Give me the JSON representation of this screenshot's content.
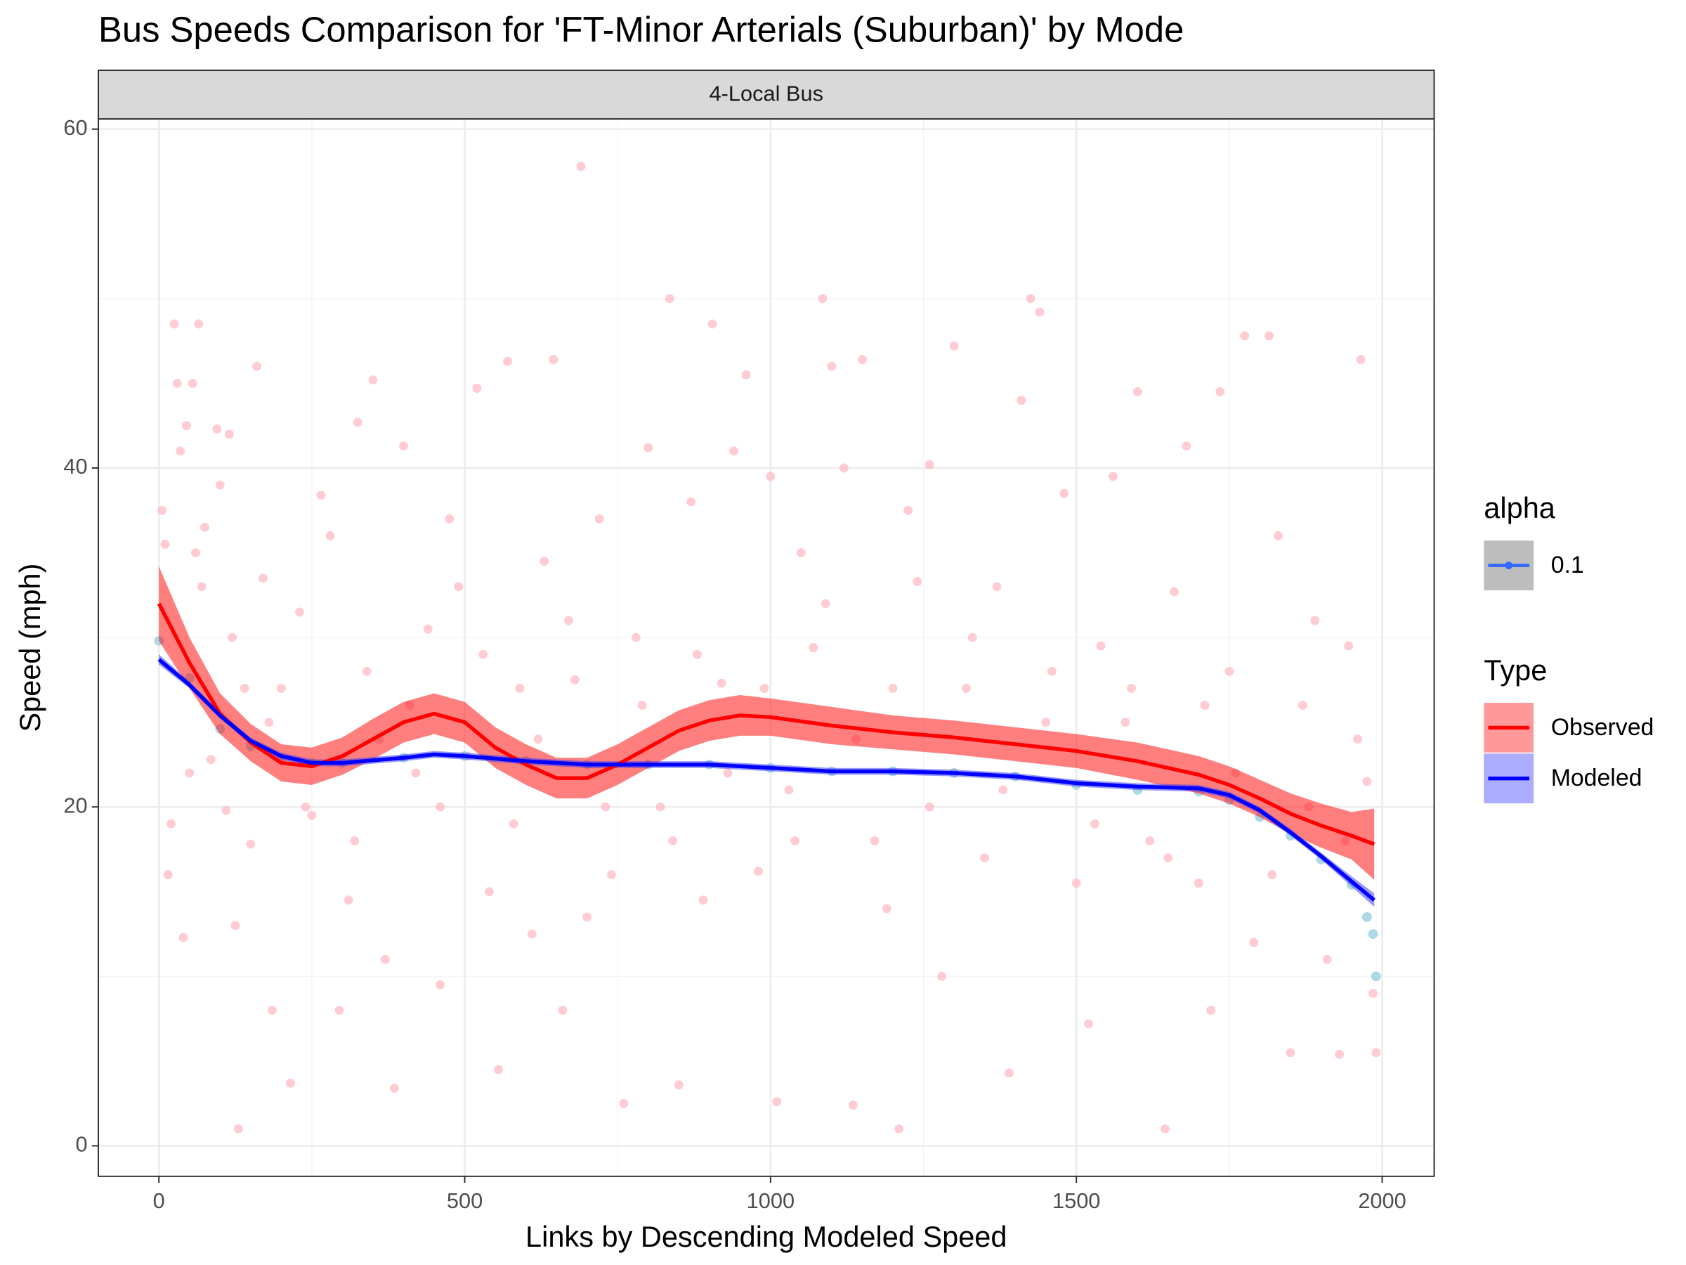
{
  "chart_data": {
    "type": "scatter",
    "title": "Bus Speeds Comparison for 'FT-Minor Arterials (Suburban)' by Mode",
    "facet_label": "4-Local Bus",
    "x_label": "Links by Descending Modeled Speed",
    "y_label": "Speed (mph)",
    "xlim": [
      -99,
      2085
    ],
    "ylim": [
      -1.8,
      60.6
    ],
    "xticks": [
      0,
      500,
      1000,
      1500,
      2000
    ],
    "yticks": [
      0,
      20,
      40,
      60
    ],
    "minor_xticks": [
      250,
      750,
      1250,
      1750
    ],
    "minor_yticks": [
      10,
      30,
      50
    ],
    "grid": true,
    "alpha_legend": {
      "title": "alpha",
      "label": "0.1",
      "color": "#3366ff"
    },
    "legend_title": "Type",
    "observed_points": {
      "color": "#ffb6c1",
      "x": [
        5,
        10,
        15,
        20,
        25,
        30,
        35,
        40,
        45,
        50,
        55,
        60,
        65,
        70,
        75,
        85,
        95,
        100,
        110,
        115,
        125,
        130,
        140,
        150,
        160,
        170,
        185,
        200,
        215,
        230,
        250,
        265,
        280,
        295,
        310,
        325,
        340,
        350,
        370,
        385,
        400,
        420,
        440,
        460,
        475,
        490,
        505,
        520,
        540,
        555,
        570,
        590,
        610,
        630,
        645,
        660,
        680,
        690,
        700,
        720,
        740,
        760,
        780,
        800,
        820,
        835,
        850,
        870,
        890,
        905,
        920,
        940,
        960,
        980,
        1000,
        1010,
        1030,
        1050,
        1070,
        1085,
        1100,
        1120,
        1135,
        1150,
        1170,
        1190,
        1210,
        1225,
        1240,
        1260,
        1280,
        1300,
        1320,
        1350,
        1370,
        1390,
        1410,
        1425,
        1440,
        1460,
        1480,
        1500,
        1520,
        1540,
        1560,
        1580,
        1600,
        1620,
        1645,
        1660,
        1680,
        1700,
        1720,
        1735,
        1750,
        1775,
        1790,
        1815,
        1830,
        1850,
        1870,
        1890,
        1910,
        1930,
        1945,
        1965,
        1975,
        1985,
        1990,
        120,
        180,
        240,
        320,
        360,
        410,
        460,
        530,
        580,
        620,
        670,
        730,
        790,
        840,
        880,
        930,
        990,
        1040,
        1090,
        1140,
        1200,
        1260,
        1330,
        1380,
        1450,
        1530,
        1590,
        1650,
        1710,
        1760,
        1820,
        1880,
        1940,
        1960
      ],
      "y": [
        37.5,
        35.5,
        16,
        19,
        48.5,
        45,
        41,
        12.3,
        42.5,
        22,
        45,
        35,
        48.5,
        33,
        36.5,
        22.8,
        42.3,
        39,
        19.8,
        42,
        13,
        1,
        27,
        17.8,
        46,
        33.5,
        8,
        27,
        3.7,
        31.5,
        19.5,
        38.4,
        36,
        8,
        14.5,
        42.7,
        28,
        45.2,
        11,
        3.4,
        41.3,
        22,
        30.5,
        9.5,
        37,
        33,
        23,
        44.7,
        15,
        4.5,
        46.3,
        27,
        12.5,
        34.5,
        46.4,
        8,
        27.5,
        57.8,
        13.5,
        37,
        16,
        2.5,
        30,
        41.2,
        20,
        50,
        3.6,
        38,
        14.5,
        48.5,
        27.3,
        41,
        45.5,
        16.2,
        39.5,
        2.6,
        21,
        35,
        29.4,
        50,
        46,
        40,
        2.4,
        46.4,
        18,
        14,
        1,
        37.5,
        33.3,
        40.2,
        10,
        47.2,
        27,
        17,
        33,
        4.3,
        44,
        50,
        49.2,
        28,
        38.5,
        15.5,
        7.2,
        29.5,
        39.5,
        25,
        44.5,
        18,
        1,
        32.7,
        41.3,
        15.5,
        8,
        44.5,
        28,
        47.8,
        12,
        47.8,
        36,
        5.5,
        26,
        31,
        11,
        5.4,
        29.5,
        46.4,
        21.5,
        9,
        5.5,
        30,
        25,
        20,
        18,
        24,
        26,
        20,
        29,
        19,
        24,
        31,
        20,
        26,
        18,
        29,
        22,
        27,
        18,
        32,
        24,
        27,
        20,
        30,
        21,
        25,
        19,
        27,
        17,
        26,
        22,
        16,
        20,
        18,
        24
      ]
    },
    "modeled_points": {
      "color": "#add8e6",
      "x": [
        0,
        50,
        100,
        150,
        200,
        250,
        300,
        400,
        500,
        600,
        700,
        800,
        900,
        1000,
        1100,
        1200,
        1300,
        1400,
        1500,
        1600,
        1700,
        1750,
        1800,
        1850,
        1900,
        1950,
        1975,
        1985,
        1990
      ],
      "y": [
        29.8,
        27.6,
        24.6,
        23.6,
        22.9,
        22.6,
        22.6,
        22.9,
        23,
        22.7,
        22.5,
        22.5,
        22.5,
        22.3,
        22.1,
        22.1,
        22,
        21.8,
        21.3,
        21,
        20.9,
        20.4,
        19.4,
        18.3,
        16.9,
        15.4,
        13.5,
        12.5,
        10
      ]
    },
    "series": [
      {
        "name": "Observed",
        "color": "#ff0000",
        "band_color": "#ff0000",
        "x": [
          0,
          50,
          100,
          150,
          200,
          250,
          300,
          350,
          400,
          450,
          500,
          550,
          600,
          650,
          700,
          750,
          800,
          850,
          900,
          950,
          1000,
          1100,
          1200,
          1300,
          1400,
          1500,
          1600,
          1700,
          1750,
          1800,
          1850,
          1900,
          1950,
          1987
        ],
        "values": [
          32,
          28.5,
          25.5,
          23.8,
          22.6,
          22.4,
          23,
          24,
          25,
          25.5,
          25,
          23.5,
          22.5,
          21.7,
          21.7,
          22.5,
          23.5,
          24.5,
          25.1,
          25.4,
          25.3,
          24.8,
          24.4,
          24.1,
          23.7,
          23.3,
          22.7,
          21.9,
          21.3,
          20.5,
          19.6,
          18.9,
          18.3,
          17.8
        ],
        "lower": [
          29.8,
          27,
          24.3,
          22.7,
          21.5,
          21.3,
          21.9,
          22.8,
          23.8,
          24.3,
          23.8,
          22.3,
          21.3,
          20.5,
          20.5,
          21.3,
          22.3,
          23.3,
          23.9,
          24.2,
          24.2,
          23.7,
          23.4,
          23.1,
          22.7,
          22.3,
          21.6,
          20.8,
          20.2,
          19.4,
          18.4,
          17.6,
          16.9,
          15.7
        ],
        "upper": [
          34.2,
          30,
          26.7,
          24.9,
          23.7,
          23.5,
          24.1,
          25.2,
          26.2,
          26.7,
          26.2,
          24.7,
          23.7,
          22.9,
          22.9,
          23.7,
          24.7,
          25.7,
          26.3,
          26.6,
          26.4,
          25.9,
          25.4,
          25.1,
          24.7,
          24.3,
          23.8,
          23,
          22.4,
          21.6,
          20.8,
          20.2,
          19.7,
          19.9
        ]
      },
      {
        "name": "Modeled",
        "color": "#0000ff",
        "band_color": "#3333ff",
        "x": [
          0,
          50,
          100,
          150,
          200,
          250,
          300,
          400,
          450,
          500,
          600,
          700,
          800,
          900,
          1000,
          1100,
          1200,
          1300,
          1400,
          1500,
          1600,
          1700,
          1750,
          1800,
          1850,
          1900,
          1950,
          1987
        ],
        "values": [
          28.7,
          27.2,
          25.4,
          23.9,
          23,
          22.6,
          22.6,
          22.9,
          23.1,
          23,
          22.7,
          22.5,
          22.5,
          22.5,
          22.3,
          22.1,
          22.1,
          22,
          21.8,
          21.4,
          21.2,
          21.1,
          20.7,
          19.8,
          18.5,
          17.1,
          15.6,
          14.5
        ],
        "lower": [
          28.4,
          27,
          25.2,
          23.7,
          22.8,
          22.4,
          22.4,
          22.7,
          22.9,
          22.8,
          22.5,
          22.3,
          22.3,
          22.3,
          22.1,
          21.9,
          21.9,
          21.8,
          21.6,
          21.2,
          21,
          20.9,
          20.5,
          19.6,
          18.3,
          16.9,
          15.3,
          14.1
        ],
        "upper": [
          29,
          27.4,
          25.6,
          24.1,
          23.2,
          22.8,
          22.8,
          23.1,
          23.3,
          23.2,
          22.9,
          22.7,
          22.7,
          22.7,
          22.5,
          22.3,
          22.3,
          22.2,
          22,
          21.6,
          21.4,
          21.3,
          20.9,
          20,
          18.7,
          17.3,
          15.9,
          14.9
        ]
      }
    ]
  }
}
